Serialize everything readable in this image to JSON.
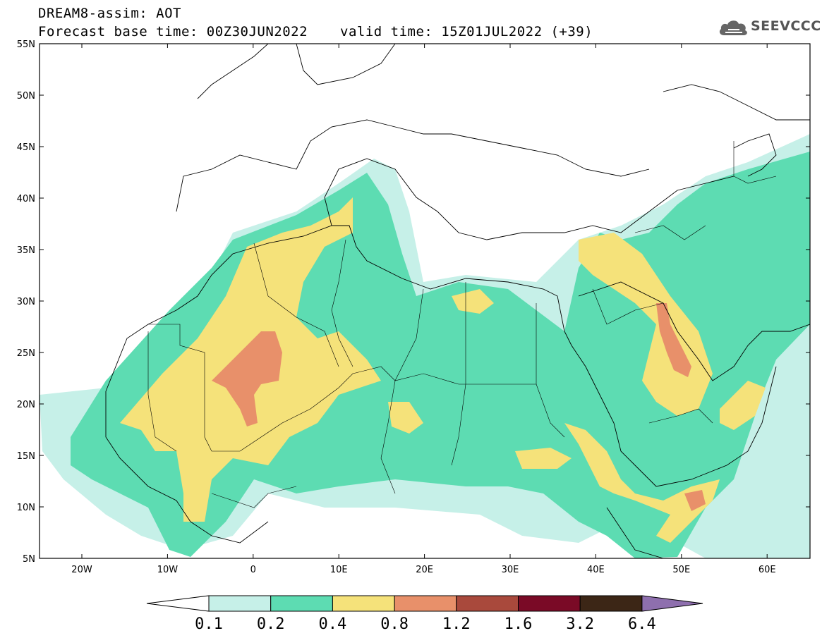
{
  "header": {
    "title": "DREAM8-assim: AOT",
    "base_time": "Forecast base time: 00Z30JUN2022",
    "valid_time": "valid time: 15Z01JUL2022 (+39)"
  },
  "logo": {
    "text": "SEEVCCC",
    "icon": "cloud-icon"
  },
  "map": {
    "lat_labels": [
      "55N",
      "50N",
      "45N",
      "40N",
      "35N",
      "30N",
      "25N",
      "20N",
      "15N",
      "10N",
      "5N"
    ],
    "lon_labels": [
      "20W",
      "10W",
      "0",
      "10E",
      "20E",
      "30E",
      "40E",
      "50E",
      "60E"
    ],
    "colors": {
      "c1": "#c6f0e8",
      "c2": "#5ddcb2",
      "c3": "#f5e27a",
      "c4": "#e8906a"
    }
  },
  "colorbar": {
    "labels": [
      "0.1",
      "0.2",
      "0.4",
      "0.8",
      "1.2",
      "1.6",
      "3.2",
      "6.4"
    ],
    "colors": [
      "#ffffff",
      "#c6f0e8",
      "#5ddcb2",
      "#f5e27a",
      "#e8906a",
      "#a9493c",
      "#7a0a26",
      "#3c2616",
      "#8e6fae"
    ]
  }
}
